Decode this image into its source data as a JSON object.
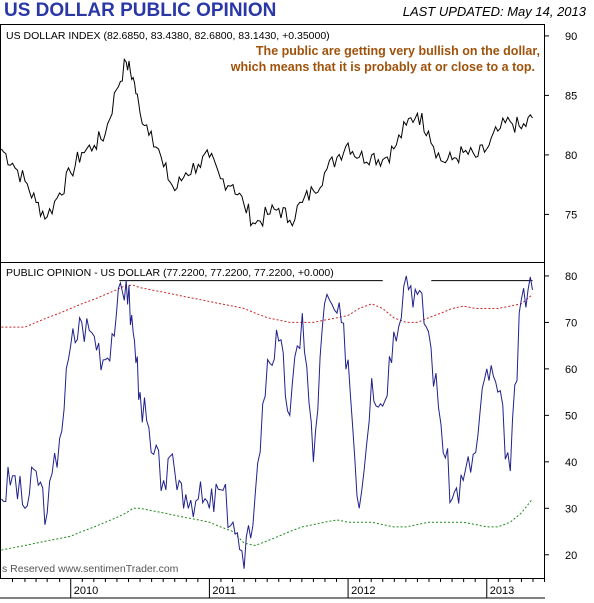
{
  "header": {
    "title": "US DOLLAR PUBLIC OPINION",
    "last_updated": "LAST UPDATED:  May 14, 2013"
  },
  "colors": {
    "title": "#2a37a6",
    "annotation": "#a0520a",
    "price_line": "#000000",
    "opinion_line": "#20208c",
    "upper_band": "#cc2222",
    "lower_band": "#1a8a1a"
  },
  "chart_data": [
    {
      "type": "line",
      "panel": "top",
      "header_label": "US DOLLAR INDEX (82.6850, 83.4380, 82.6800, 83.1430, +0.35000)",
      "annotation": [
        "The public are getting very bullish on the dollar,",
        "which means that it is probably at or close to a top."
      ],
      "ylim": [
        71,
        91
      ],
      "yticks": [
        75,
        80,
        85,
        90
      ],
      "x": [
        2009.5,
        2009.58,
        2009.67,
        2009.75,
        2009.83,
        2009.92,
        2010.0,
        2010.08,
        2010.17,
        2010.25,
        2010.33,
        2010.4,
        2010.45,
        2010.5,
        2010.58,
        2010.67,
        2010.75,
        2010.83,
        2010.92,
        2011.0,
        2011.08,
        2011.17,
        2011.25,
        2011.33,
        2011.42,
        2011.5,
        2011.58,
        2011.67,
        2011.75,
        2011.83,
        2011.92,
        2012.0,
        2012.08,
        2012.17,
        2012.25,
        2012.33,
        2012.42,
        2012.5,
        2012.58,
        2012.67,
        2012.75,
        2012.83,
        2012.92,
        2013.0,
        2013.08,
        2013.17,
        2013.25,
        2013.33
      ],
      "series": [
        {
          "values": [
            80.5,
            79.3,
            77.8,
            76.0,
            74.8,
            76.8,
            78.5,
            80.2,
            80.8,
            81.8,
            85.5,
            87.8,
            86.5,
            83.5,
            82.0,
            79.0,
            77.0,
            78.5,
            79.2,
            79.8,
            78.0,
            77.5,
            75.8,
            74.2,
            75.0,
            75.5,
            74.5,
            76.0,
            77.0,
            78.5,
            79.8,
            81.0,
            79.8,
            80.0,
            79.6,
            80.5,
            82.5,
            83.5,
            82.0,
            79.5,
            79.6,
            80.2,
            79.8,
            80.5,
            82.0,
            82.8,
            82.2,
            83.1
          ]
        }
      ]
    },
    {
      "type": "line",
      "panel": "bottom",
      "header_label": "PUBLIC OPINION - US DOLLAR (77.2200, 77.2200, 77.2200, +0.000)",
      "footer_label": "s Reserved  www.sentimenTrader.com",
      "ylim": [
        15,
        83
      ],
      "yticks": [
        20,
        30,
        40,
        50,
        60,
        70,
        80
      ],
      "x_ticks": [
        "2010",
        "2011",
        "2012",
        "2013"
      ],
      "x": [
        2009.5,
        2009.58,
        2009.67,
        2009.75,
        2009.83,
        2009.92,
        2010.0,
        2010.08,
        2010.17,
        2010.25,
        2010.33,
        2010.4,
        2010.45,
        2010.5,
        2010.58,
        2010.67,
        2010.75,
        2010.83,
        2010.92,
        2011.0,
        2011.08,
        2011.17,
        2011.25,
        2011.33,
        2011.42,
        2011.5,
        2011.58,
        2011.67,
        2011.75,
        2011.83,
        2011.92,
        2012.0,
        2012.08,
        2012.17,
        2012.25,
        2012.33,
        2012.42,
        2012.5,
        2012.58,
        2012.67,
        2012.75,
        2012.83,
        2012.92,
        2013.0,
        2013.08,
        2013.17,
        2013.25,
        2013.33
      ],
      "series": [
        {
          "name": "Public Opinion",
          "values": [
            32,
            37,
            30,
            38,
            29,
            45,
            65,
            70,
            67,
            62,
            72,
            79,
            68,
            55,
            42,
            36,
            38,
            33,
            32,
            30,
            34,
            27,
            17,
            33,
            62,
            66,
            50,
            72,
            40,
            74,
            72,
            62,
            30,
            58,
            52,
            68,
            80,
            76,
            68,
            48,
            32,
            36,
            42,
            60,
            55,
            38,
            75,
            77
          ]
        },
        {
          "name": "Upper Band",
          "values": [
            69,
            69,
            69,
            70,
            71,
            72,
            73,
            74,
            75,
            76,
            77,
            78,
            78,
            77.5,
            77,
            76.5,
            76,
            75.5,
            75,
            74.5,
            74,
            73.5,
            73,
            72,
            71,
            70.5,
            70,
            70,
            70,
            70.5,
            71,
            71.5,
            73,
            74,
            73,
            71,
            70,
            70,
            71,
            72,
            73,
            73.5,
            73,
            73,
            73,
            73.5,
            74,
            76
          ]
        },
        {
          "name": "Lower Band",
          "values": [
            21,
            21.5,
            22,
            22.5,
            23,
            23.5,
            24,
            25,
            26,
            27,
            28,
            29,
            30,
            30,
            29.5,
            29,
            28.5,
            28,
            27.5,
            27,
            26,
            25,
            22.5,
            22,
            23,
            24,
            25,
            26,
            26.5,
            27,
            27.5,
            27,
            27,
            27,
            26.5,
            26,
            26,
            26.5,
            27,
            27,
            27,
            27,
            26.5,
            26,
            26,
            27,
            29,
            32
          ]
        }
      ],
      "reference_lines": [
        {
          "y": 79,
          "x_start": 2010.35,
          "x_end": 2012.25
        },
        {
          "y": 79,
          "x_start": 2012.6,
          "x_end": 2013.33
        }
      ]
    }
  ]
}
